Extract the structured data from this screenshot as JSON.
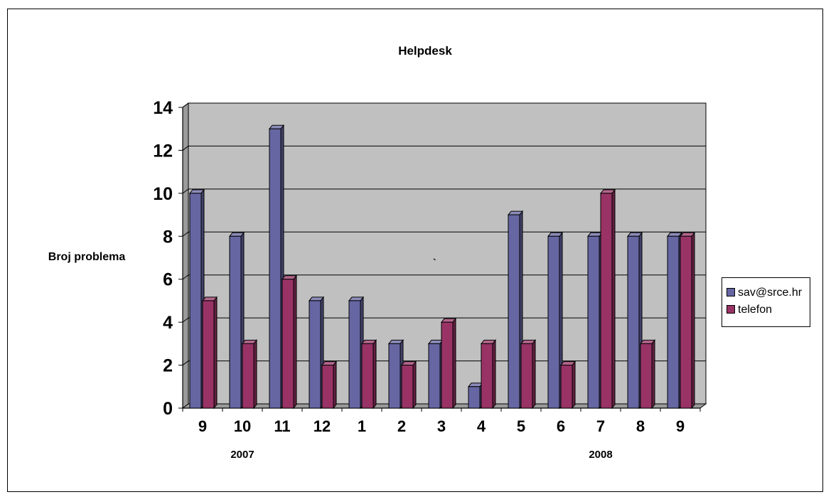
{
  "chart_data": {
    "type": "bar",
    "title": "Helpdesk",
    "xlabel": "",
    "ylabel": "Broj problema",
    "ylim": [
      0,
      14
    ],
    "yticks": [
      0,
      2,
      4,
      6,
      8,
      10,
      12,
      14
    ],
    "categories": [
      "9",
      "10",
      "11",
      "12",
      "1",
      "2",
      "3",
      "4",
      "5",
      "6",
      "7",
      "8",
      "9"
    ],
    "year_labels": [
      {
        "label": "2007",
        "under_category_index": 1
      },
      {
        "label": "2008",
        "under_category_index": 10
      }
    ],
    "series": [
      {
        "name": "sav@srce.hr",
        "color": "#6666a3",
        "values": [
          10,
          8,
          13,
          5,
          5,
          3,
          3,
          1,
          9,
          8,
          8,
          8,
          8
        ]
      },
      {
        "name": "telefon",
        "color": "#993366",
        "values": [
          5,
          3,
          6,
          2,
          3,
          2,
          4,
          3,
          3,
          2,
          10,
          3,
          8
        ]
      }
    ],
    "grid": true,
    "plot_background": "#c0c0c0",
    "legend_position": "right",
    "stray_mark": "`"
  }
}
